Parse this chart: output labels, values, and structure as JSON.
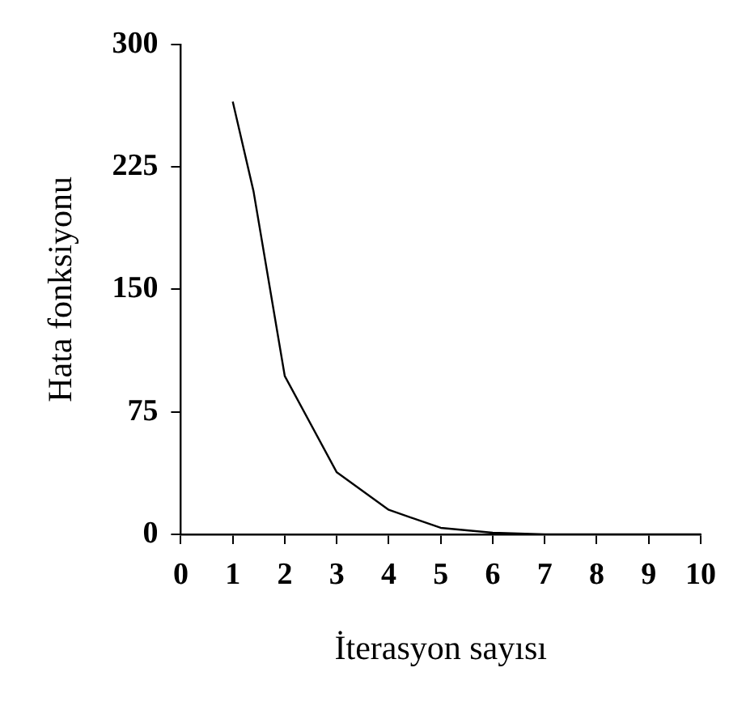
{
  "chart_data": {
    "type": "line",
    "xlabel": "İterasyon sayısı",
    "ylabel": "Hata fonksiyonu",
    "x": [
      1,
      1.4,
      2,
      3,
      4,
      5,
      6,
      7,
      8,
      9,
      10
    ],
    "series": [
      {
        "color": "#000000",
        "values": [
          265,
          210,
          97,
          38,
          15,
          4,
          1,
          0,
          0,
          0,
          0
        ]
      }
    ],
    "xlim": [
      0,
      10
    ],
    "xticks": [
      0,
      1,
      2,
      3,
      4,
      5,
      6,
      7,
      8,
      9,
      10
    ],
    "ylim": [
      0,
      300
    ],
    "yticks": [
      0,
      75,
      150,
      225,
      300
    ],
    "grid": false,
    "legend": false,
    "marker": "none",
    "line_style": "solid"
  }
}
